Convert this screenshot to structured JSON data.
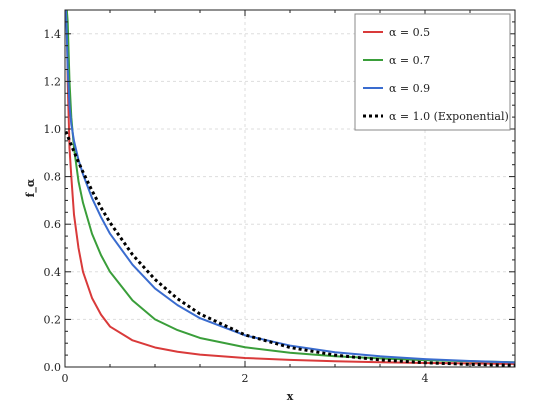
{
  "chart_data": {
    "type": "line",
    "xlabel": "x",
    "ylabel": "f_α",
    "xlim": [
      0,
      5
    ],
    "ylim": [
      0,
      1.5
    ],
    "xticks": [
      0,
      2,
      4
    ],
    "xtick_labels": [
      "0",
      "2",
      "4"
    ],
    "yticks": [
      0,
      0.2,
      0.4,
      0.6,
      0.8,
      1.0,
      1.2,
      1.4
    ],
    "ytick_labels": [
      "0.0",
      "0.2",
      "0.4",
      "0.6",
      "0.8",
      "1.0",
      "1.2",
      "1.4"
    ],
    "grid": true,
    "legend_position": "top-right",
    "x": [
      0.01,
      0.02,
      0.03,
      0.05,
      0.07,
      0.1,
      0.15,
      0.2,
      0.3,
      0.4,
      0.5,
      0.75,
      1.0,
      1.25,
      1.5,
      2.0,
      2.5,
      3.0,
      3.5,
      4.0,
      4.5,
      5.0
    ],
    "series": [
      {
        "name": "α = 0.5",
        "color": "#d93a3a",
        "dash": "solid",
        "values": [
          1.5,
          1.5,
          1.2,
          0.92,
          0.8,
          0.64,
          0.5,
          0.4,
          0.29,
          0.22,
          0.17,
          0.112,
          0.082,
          0.064,
          0.052,
          0.038,
          0.03,
          0.024,
          0.02,
          0.017,
          0.015,
          0.013
        ]
      },
      {
        "name": "α = 0.7",
        "color": "#3a9e3a",
        "dash": "solid",
        "values": [
          1.5,
          1.5,
          1.45,
          1.2,
          1.05,
          0.92,
          0.78,
          0.69,
          0.56,
          0.47,
          0.4,
          0.28,
          0.2,
          0.155,
          0.122,
          0.083,
          0.06,
          0.045,
          0.036,
          0.029,
          0.024,
          0.02
        ]
      },
      {
        "name": "α = 0.9",
        "color": "#3a6ccf",
        "dash": "solid",
        "values": [
          1.5,
          1.4,
          1.25,
          1.1,
          1.02,
          0.95,
          0.87,
          0.81,
          0.71,
          0.63,
          0.56,
          0.43,
          0.33,
          0.26,
          0.205,
          0.133,
          0.09,
          0.062,
          0.045,
          0.033,
          0.025,
          0.019
        ]
      },
      {
        "name": "α = 1.0  (Exponential)",
        "color": "#000000",
        "dash": "dotted",
        "values": [
          0.99,
          0.98,
          0.97,
          0.951,
          0.932,
          0.905,
          0.861,
          0.819,
          0.741,
          0.67,
          0.607,
          0.472,
          0.368,
          0.287,
          0.223,
          0.135,
          0.082,
          0.05,
          0.03,
          0.018,
          0.011,
          0.007
        ]
      }
    ]
  }
}
